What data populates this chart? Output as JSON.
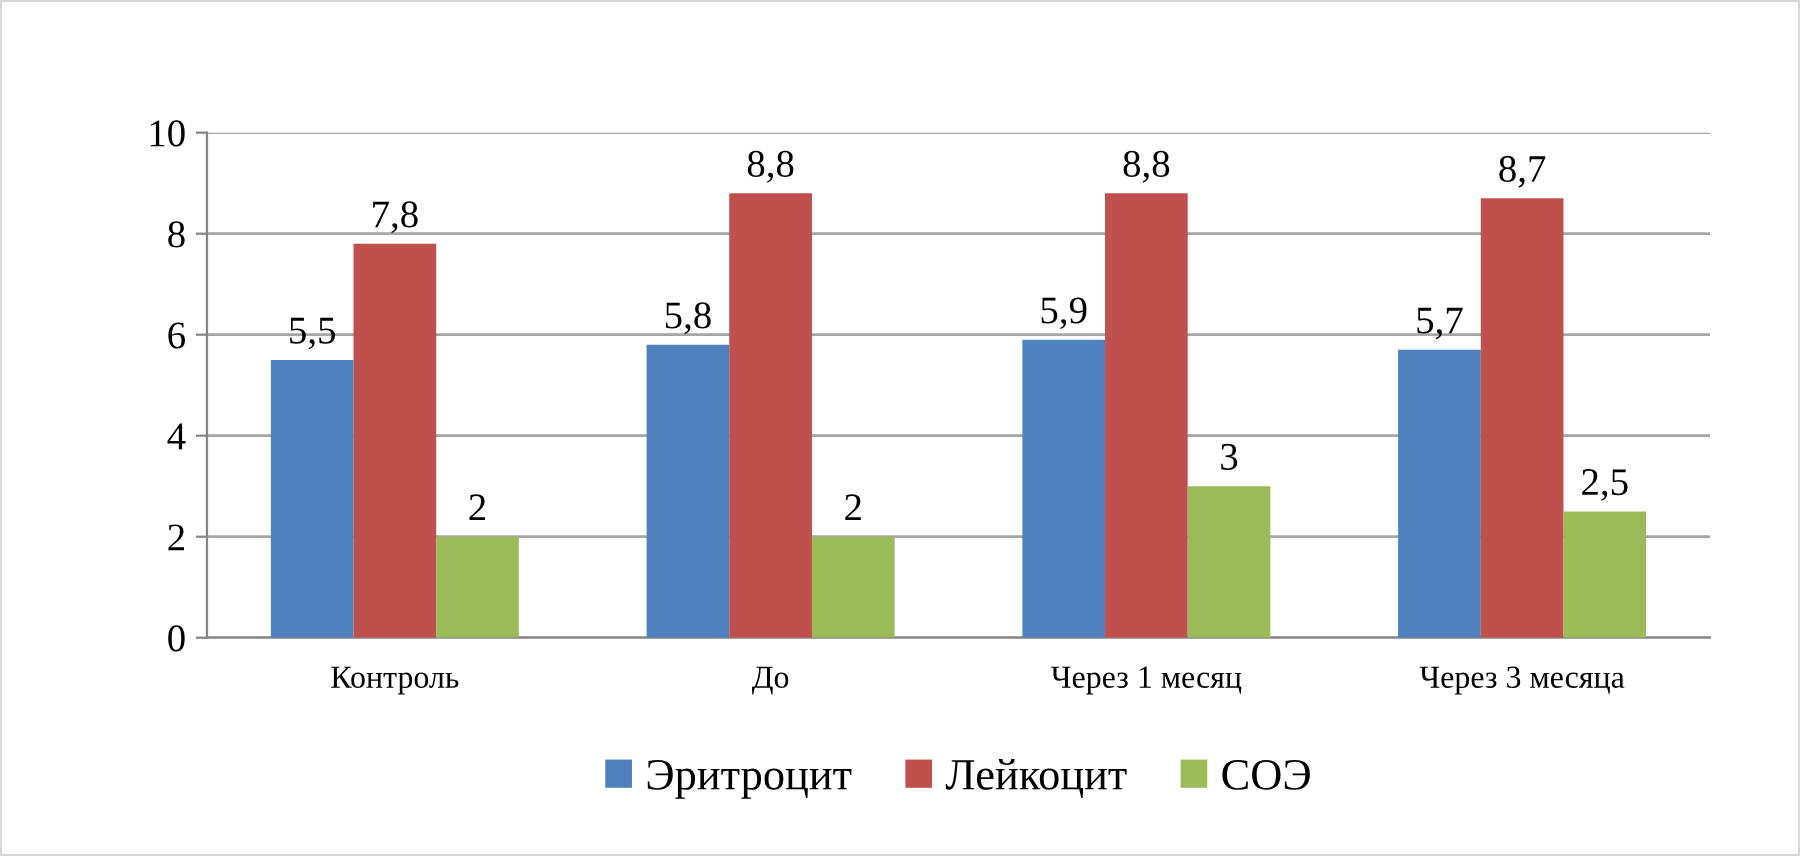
{
  "chart_data": {
    "type": "bar",
    "categories": [
      "Контроль",
      "До",
      "Через 1 месяц",
      "Через 3 месяца"
    ],
    "series": [
      {
        "name": "Эритроцит",
        "color": "#4f81bd",
        "values": [
          5.5,
          5.8,
          5.9,
          5.7
        ],
        "value_labels": [
          "5,5",
          "5,8",
          "5,9",
          "5,7"
        ]
      },
      {
        "name": "Лейкоцит",
        "color": "#c0504d",
        "values": [
          7.8,
          8.8,
          8.8,
          8.7
        ],
        "value_labels": [
          "7,8",
          "8,8",
          "8,8",
          "8,7"
        ]
      },
      {
        "name": "СОЭ",
        "color": "#9bbb59",
        "values": [
          2,
          2,
          3,
          2.5
        ],
        "value_labels": [
          "2",
          "2",
          "3",
          "2,5"
        ]
      }
    ],
    "ylim": [
      0,
      10
    ],
    "yticks": [
      0,
      2,
      4,
      6,
      8,
      10
    ],
    "grid": "y",
    "legend": "bottom"
  }
}
